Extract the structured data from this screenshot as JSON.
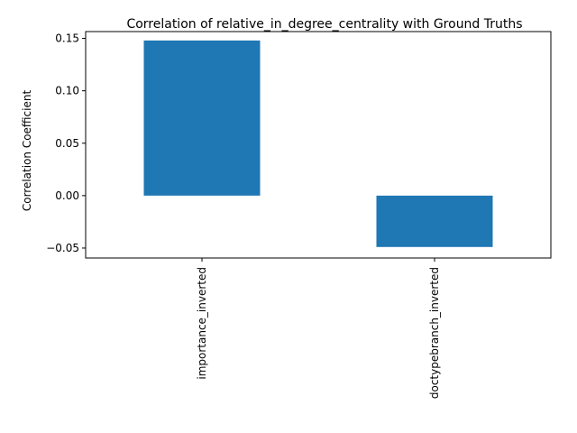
{
  "chart_data": {
    "type": "bar",
    "title": "Correlation of relative_in_degree_centrality with Ground Truths",
    "xlabel": "",
    "ylabel": "Correlation Coefficient",
    "categories": [
      "importance_inverted",
      "doctypebranch_inverted"
    ],
    "values": [
      0.148,
      -0.049
    ],
    "ylim": [
      -0.0595,
      0.1565
    ],
    "yticks": [
      -0.05,
      0.0,
      0.05,
      0.1,
      0.15
    ],
    "ytick_labels": [
      "−0.05",
      "0.00",
      "0.05",
      "0.10",
      "0.15"
    ],
    "bar_color": "#1f77b4",
    "grid": false,
    "legend": "none"
  }
}
